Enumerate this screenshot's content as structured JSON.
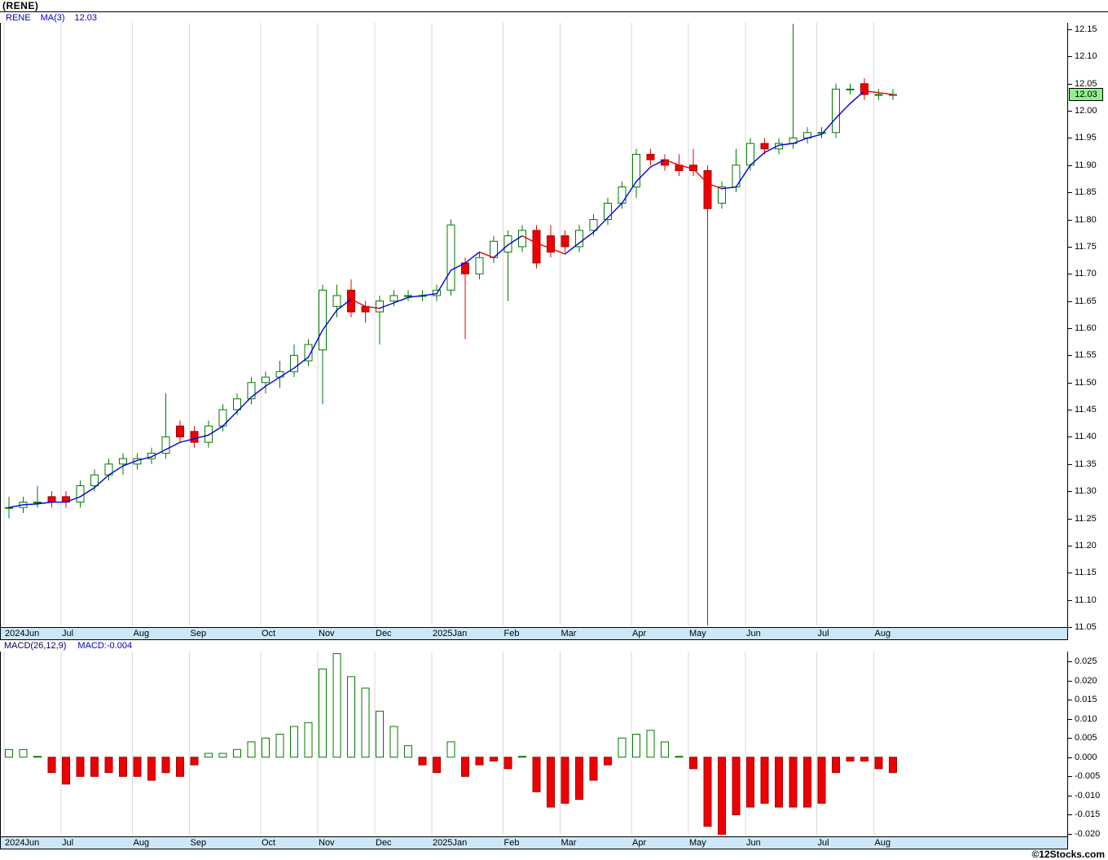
{
  "window": {
    "title": "(RENE)"
  },
  "legend": {
    "symbol": "RENE",
    "ma_label": "MA(3)",
    "ma_value": "12.03"
  },
  "price_tag": {
    "label": "12.03",
    "value": 12.03
  },
  "macd_legend": {
    "label": "MACD(26,12,9)",
    "value_label": "MACD:-0.004",
    "value": -0.004
  },
  "footer": {
    "watermark": "©12Stocks.com"
  },
  "colors": {
    "up": "#007a00",
    "down": "#ee0000",
    "down_stroke": "#aa0000",
    "ma_up": "#0000dd",
    "ma_down": "#ee0000",
    "grid": "#d9d9d9",
    "strip_bg": "#cde7f7",
    "tag_bg": "#90ee90",
    "legend_blue": "#0000cc"
  },
  "chart_data": {
    "type": "candlestick",
    "symbol": "RENE",
    "interval": "weekly",
    "overlay": "MA(3)",
    "title": "(RENE)",
    "x_labels": [
      {
        "label": "2024Jun",
        "i": 0
      },
      {
        "label": "Jul",
        "i": 4
      },
      {
        "label": "Aug",
        "i": 9
      },
      {
        "label": "Sep",
        "i": 13
      },
      {
        "label": "Oct",
        "i": 18
      },
      {
        "label": "Nov",
        "i": 22
      },
      {
        "label": "Dec",
        "i": 26
      },
      {
        "label": "2025Jan",
        "i": 30
      },
      {
        "label": "Feb",
        "i": 35
      },
      {
        "label": "Mar",
        "i": 39
      },
      {
        "label": "Apr",
        "i": 44
      },
      {
        "label": "May",
        "i": 48
      },
      {
        "label": "Jun",
        "i": 52
      },
      {
        "label": "Jul",
        "i": 57
      },
      {
        "label": "Aug",
        "i": 61
      }
    ],
    "price_axis": {
      "min": 11.05,
      "max": 12.15,
      "tick_step": 0.05,
      "ticks": [
        "12.15",
        "12.10",
        "12.05",
        "12.00",
        "11.95",
        "11.90",
        "11.85",
        "11.80",
        "11.75",
        "11.70",
        "11.65",
        "11.60",
        "11.55",
        "11.50",
        "11.45",
        "11.40",
        "11.35",
        "11.30",
        "11.25",
        "11.20",
        "11.15",
        "11.10",
        "11.05"
      ]
    },
    "candles": [
      [
        11.27,
        11.29,
        11.25,
        11.27
      ],
      [
        11.27,
        11.29,
        11.26,
        11.28
      ],
      [
        11.28,
        11.31,
        11.27,
        11.28
      ],
      [
        11.29,
        11.3,
        11.27,
        11.28
      ],
      [
        11.29,
        11.3,
        11.27,
        11.28
      ],
      [
        11.28,
        11.32,
        11.27,
        11.31
      ],
      [
        11.31,
        11.34,
        11.3,
        11.33
      ],
      [
        11.33,
        11.36,
        11.32,
        11.35
      ],
      [
        11.35,
        11.37,
        11.33,
        11.36
      ],
      [
        11.35,
        11.37,
        11.34,
        11.36
      ],
      [
        11.36,
        11.38,
        11.35,
        11.37
      ],
      [
        11.37,
        11.48,
        11.36,
        11.4
      ],
      [
        11.42,
        11.43,
        11.39,
        11.4
      ],
      [
        11.41,
        11.42,
        11.38,
        11.39
      ],
      [
        11.39,
        11.43,
        11.38,
        11.42
      ],
      [
        11.42,
        11.46,
        11.41,
        11.45
      ],
      [
        11.45,
        11.48,
        11.44,
        11.47
      ],
      [
        11.47,
        11.51,
        11.46,
        11.5
      ],
      [
        11.5,
        11.52,
        11.48,
        11.51
      ],
      [
        11.51,
        11.54,
        11.49,
        11.52
      ],
      [
        11.52,
        11.57,
        11.51,
        11.55
      ],
      [
        11.54,
        11.58,
        11.53,
        11.57
      ],
      [
        11.56,
        11.68,
        11.46,
        11.67
      ],
      [
        11.64,
        11.68,
        11.62,
        11.66
      ],
      [
        11.67,
        11.69,
        11.62,
        11.63
      ],
      [
        11.64,
        11.65,
        11.61,
        11.63
      ],
      [
        11.63,
        11.66,
        11.57,
        11.65
      ],
      [
        11.65,
        11.67,
        11.64,
        11.66
      ],
      [
        11.66,
        11.67,
        11.65,
        11.66
      ],
      [
        11.66,
        11.67,
        11.65,
        11.66
      ],
      [
        11.66,
        11.68,
        11.65,
        11.67
      ],
      [
        11.67,
        11.8,
        11.66,
        11.79
      ],
      [
        11.72,
        11.73,
        11.58,
        11.7
      ],
      [
        11.7,
        11.74,
        11.69,
        11.73
      ],
      [
        11.73,
        11.77,
        11.72,
        11.76
      ],
      [
        11.74,
        11.78,
        11.65,
        11.77
      ],
      [
        11.75,
        11.79,
        11.74,
        11.78
      ],
      [
        11.78,
        11.79,
        11.71,
        11.72
      ],
      [
        11.77,
        11.79,
        11.73,
        11.74
      ],
      [
        11.77,
        11.78,
        11.74,
        11.75
      ],
      [
        11.75,
        11.79,
        11.74,
        11.78
      ],
      [
        11.78,
        11.81,
        11.77,
        11.8
      ],
      [
        11.8,
        11.84,
        11.79,
        11.83
      ],
      [
        11.83,
        11.87,
        11.82,
        11.86
      ],
      [
        11.86,
        11.93,
        11.84,
        11.92
      ],
      [
        11.92,
        11.93,
        11.9,
        11.91
      ],
      [
        11.91,
        11.92,
        11.89,
        11.9
      ],
      [
        11.9,
        11.92,
        11.88,
        11.89
      ],
      [
        11.9,
        11.93,
        11.88,
        11.89
      ],
      [
        11.89,
        11.9,
        11.05,
        11.82
      ],
      [
        11.83,
        11.87,
        11.82,
        11.86
      ],
      [
        11.86,
        11.93,
        11.85,
        11.9
      ],
      [
        11.9,
        11.95,
        11.89,
        11.94
      ],
      [
        11.94,
        11.95,
        11.92,
        11.93
      ],
      [
        11.93,
        11.95,
        11.92,
        11.94
      ],
      [
        11.94,
        12.16,
        11.93,
        11.95
      ],
      [
        11.95,
        11.97,
        11.94,
        11.96
      ],
      [
        11.96,
        11.97,
        11.95,
        11.96
      ],
      [
        11.96,
        12.05,
        11.95,
        12.04
      ],
      [
        12.04,
        12.05,
        12.03,
        12.04
      ],
      [
        12.05,
        12.06,
        12.02,
        12.03
      ],
      [
        12.03,
        12.04,
        12.02,
        12.03
      ],
      [
        12.03,
        12.04,
        12.02,
        12.03
      ]
    ],
    "last_close": 12.03,
    "indicator": {
      "type": "macd",
      "params": [
        26,
        12,
        9
      ],
      "last": -0.004,
      "axis": {
        "min": -0.02,
        "max": 0.025,
        "tick_step": 0.005,
        "ticks": [
          "0.025",
          "0.020",
          "0.015",
          "0.010",
          "0.005",
          "0.000",
          "-0.005",
          "-0.010",
          "-0.015",
          "-0.020"
        ]
      },
      "histogram": [
        0.002,
        0.002,
        0.0,
        -0.004,
        -0.007,
        -0.005,
        -0.005,
        -0.004,
        -0.005,
        -0.005,
        -0.006,
        -0.004,
        -0.005,
        -0.002,
        0.001,
        0.001,
        0.002,
        0.004,
        0.005,
        0.006,
        0.008,
        0.009,
        0.023,
        0.027,
        0.021,
        0.018,
        0.012,
        0.008,
        0.003,
        -0.002,
        -0.004,
        0.004,
        -0.005,
        -0.002,
        -0.001,
        -0.003,
        0.0,
        -0.009,
        -0.013,
        -0.012,
        -0.011,
        -0.006,
        -0.002,
        0.005,
        0.006,
        0.007,
        0.004,
        0.0,
        -0.003,
        -0.018,
        -0.021,
        -0.015,
        -0.013,
        -0.012,
        -0.013,
        -0.013,
        -0.013,
        -0.012,
        -0.004,
        -0.001,
        -0.001,
        -0.003,
        -0.004
      ]
    }
  }
}
